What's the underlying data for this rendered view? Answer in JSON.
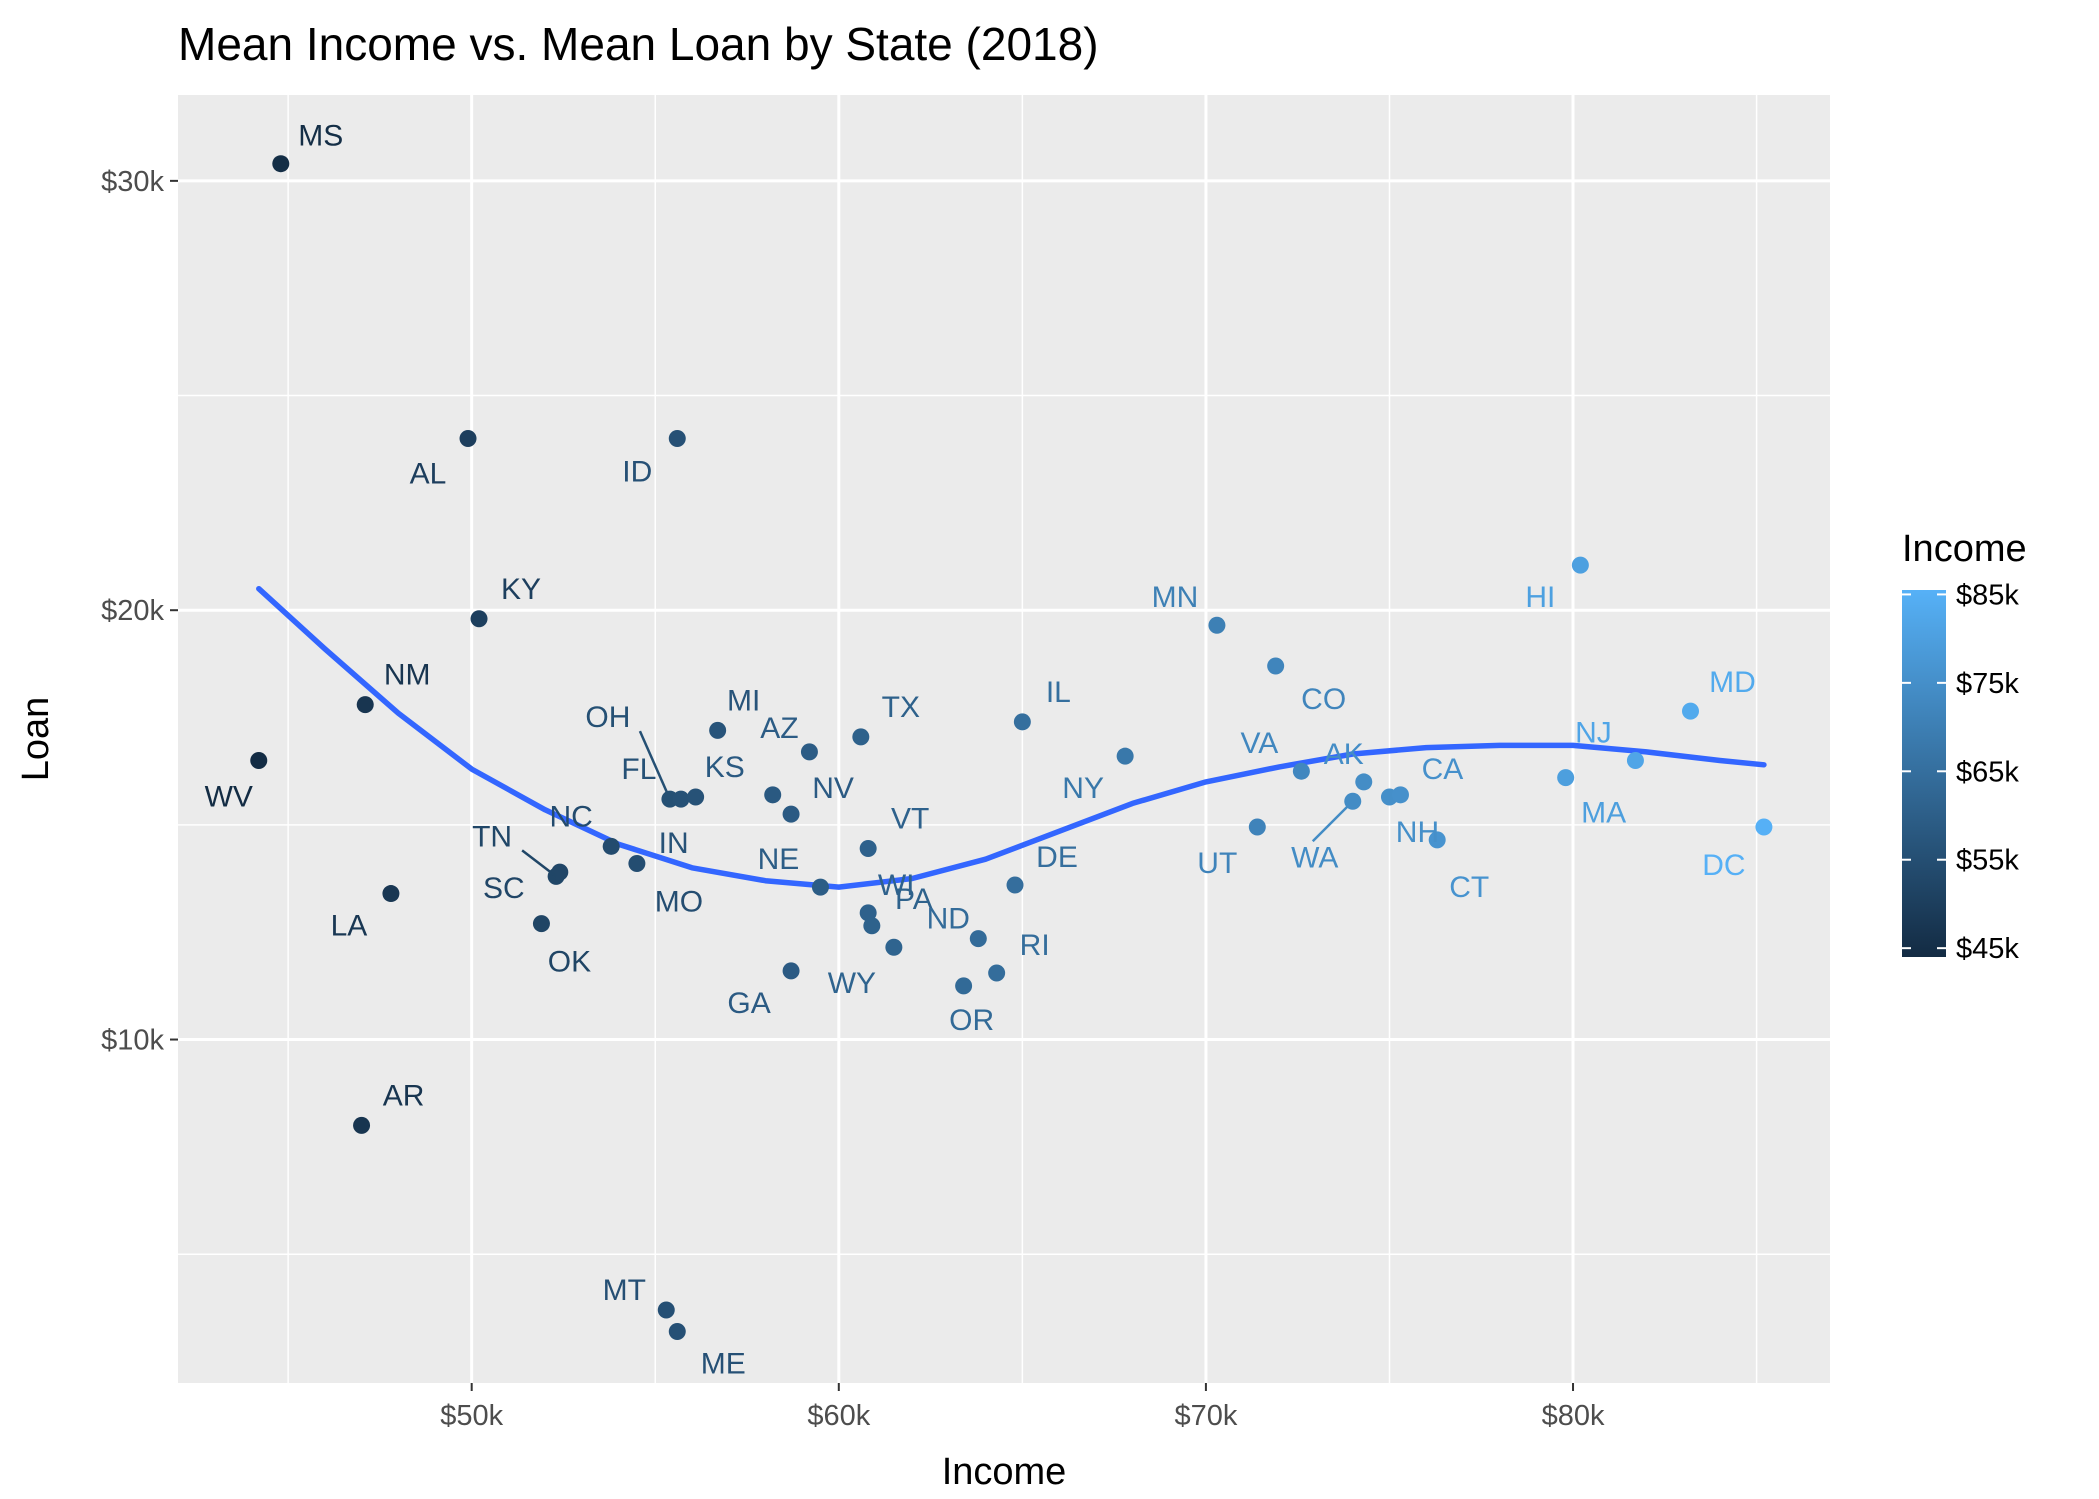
{
  "chart_data": {
    "type": "scatter",
    "title": "Mean Income vs. Mean Loan by State (2018)",
    "xlabel": "Income",
    "ylabel": "Loan",
    "xlim": [
      42000,
      87000
    ],
    "ylim": [
      2000,
      32000
    ],
    "x_ticks": [
      50000,
      60000,
      70000,
      80000
    ],
    "x_tick_labels": [
      "$50k",
      "$60k",
      "$70k",
      "$80k"
    ],
    "y_ticks": [
      10000,
      20000,
      30000
    ],
    "y_tick_labels": [
      "$10k",
      "$20k",
      "$30k"
    ],
    "grid": true,
    "color_scale": {
      "title": "Income",
      "low_color": "#132B43",
      "high_color": "#56B1F7",
      "min": 44000,
      "max": 85500,
      "breaks": [
        45000,
        55000,
        65000,
        75000,
        85000
      ],
      "break_labels": [
        "$45k",
        "$55k",
        "$65k",
        "$75k",
        "$85k"
      ],
      "legend_position": "right"
    },
    "points": [
      {
        "label": "MS",
        "x": 44800,
        "y": 30400
      },
      {
        "label": "AL",
        "x": 49900,
        "y": 24000
      },
      {
        "label": "ID",
        "x": 55600,
        "y": 24000
      },
      {
        "label": "KY",
        "x": 50200,
        "y": 19800
      },
      {
        "label": "NM",
        "x": 47100,
        "y": 17800
      },
      {
        "label": "WV",
        "x": 44200,
        "y": 16500
      },
      {
        "label": "LA",
        "x": 47800,
        "y": 13400
      },
      {
        "label": "AR",
        "x": 47000,
        "y": 8000
      },
      {
        "label": "TN",
        "x": 52300,
        "y": 13800
      },
      {
        "label": "SC",
        "x": 52400,
        "y": 13900
      },
      {
        "label": "OK",
        "x": 51900,
        "y": 12700
      },
      {
        "label": "NC",
        "x": 53800,
        "y": 14500
      },
      {
        "label": "MO",
        "x": 54500,
        "y": 14100
      },
      {
        "label": "OH",
        "x": 55400,
        "y": 15600
      },
      {
        "label": "FL",
        "x": 55700,
        "y": 15600
      },
      {
        "label": "IN",
        "x": 56100,
        "y": 15650
      },
      {
        "label": "MI",
        "x": 56700,
        "y": 17200
      },
      {
        "label": "KS",
        "x": 58200,
        "y": 15700
      },
      {
        "label": "NV",
        "x": 58700,
        "y": 15250
      },
      {
        "label": "AZ",
        "x": 59200,
        "y": 16700
      },
      {
        "label": "TX",
        "x": 60600,
        "y": 17050
      },
      {
        "label": "VT",
        "x": 60800,
        "y": 14450
      },
      {
        "label": "NE",
        "x": 59500,
        "y": 13550
      },
      {
        "label": "WI",
        "x": 60800,
        "y": 12950
      },
      {
        "label": "PA",
        "x": 60900,
        "y": 12650
      },
      {
        "label": "GA",
        "x": 58700,
        "y": 11600
      },
      {
        "label": "WY",
        "x": 61500,
        "y": 12150
      },
      {
        "label": "ND",
        "x": 63800,
        "y": 12350
      },
      {
        "label": "OR",
        "x": 63400,
        "y": 11250
      },
      {
        "label": "RI",
        "x": 64300,
        "y": 11550
      },
      {
        "label": "DE",
        "x": 64800,
        "y": 13600
      },
      {
        "label": "IL",
        "x": 65000,
        "y": 17400
      },
      {
        "label": "NY",
        "x": 67800,
        "y": 16600
      },
      {
        "label": "MN",
        "x": 70300,
        "y": 19650
      },
      {
        "label": "CO",
        "x": 71900,
        "y": 18700
      },
      {
        "label": "VA",
        "x": 72600,
        "y": 16250
      },
      {
        "label": "UT",
        "x": 71400,
        "y": 14950
      },
      {
        "label": "AK",
        "x": 74300,
        "y": 16000
      },
      {
        "label": "WA",
        "x": 74000,
        "y": 15550
      },
      {
        "label": "NH",
        "x": 75000,
        "y": 15650
      },
      {
        "label": "CA",
        "x": 75300,
        "y": 15700
      },
      {
        "label": "CT",
        "x": 76300,
        "y": 14650
      },
      {
        "label": "HI",
        "x": 80200,
        "y": 21050
      },
      {
        "label": "NJ",
        "x": 81700,
        "y": 16500
      },
      {
        "label": "MA",
        "x": 79800,
        "y": 16100
      },
      {
        "label": "MD",
        "x": 83200,
        "y": 17650
      },
      {
        "label": "DC",
        "x": 85200,
        "y": 14950
      },
      {
        "label": "MT",
        "x": 55300,
        "y": 3700
      },
      {
        "label": "ME",
        "x": 55600,
        "y": 3200
      }
    ],
    "trend_line": {
      "x": [
        44200,
        46000,
        48000,
        50000,
        52000,
        54000,
        56000,
        58000,
        60000,
        62000,
        64000,
        66000,
        68000,
        70000,
        72000,
        74000,
        76000,
        78000,
        80000,
        82000,
        84000,
        85200
      ],
      "y": [
        20500,
        19100,
        17600,
        16300,
        15350,
        14550,
        14000,
        13700,
        13550,
        13750,
        14200,
        14850,
        15500,
        16000,
        16350,
        16650,
        16800,
        16850,
        16850,
        16700,
        16500,
        16400
      ]
    }
  }
}
